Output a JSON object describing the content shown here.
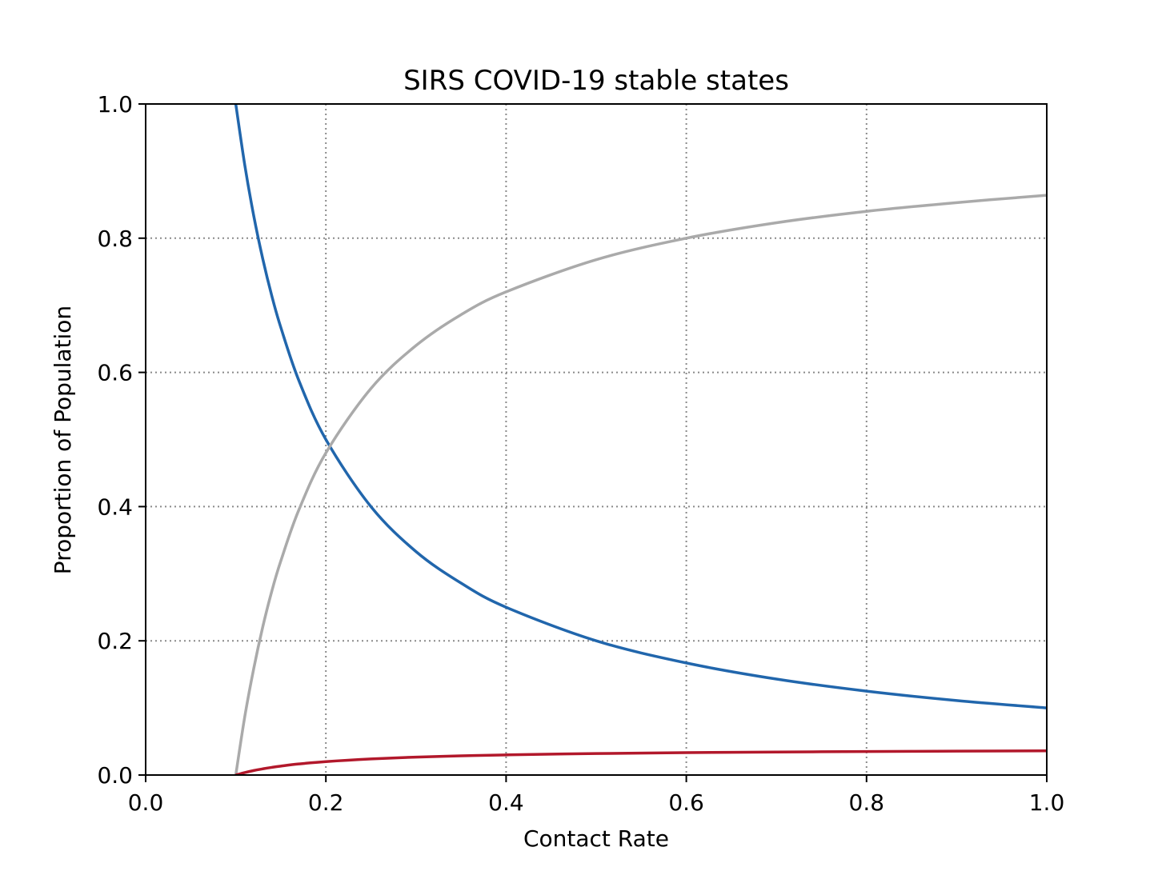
{
  "chart_data": {
    "type": "line",
    "title": "SIRS COVID-19 stable states",
    "xlabel": "Contact Rate",
    "ylabel": "Proportion of Population",
    "xlim": [
      0.0,
      1.0
    ],
    "ylim": [
      0.0,
      1.0
    ],
    "xticks": [
      "0.0",
      "0.2",
      "0.4",
      "0.6",
      "0.8",
      "1.0"
    ],
    "yticks": [
      "0.0",
      "0.2",
      "0.4",
      "0.6",
      "0.8",
      "1.0"
    ],
    "grid": true,
    "grid_style": "dotted",
    "legend": "none",
    "series": [
      {
        "color": "#2166ac",
        "x": [
          0.1,
          0.11,
          0.12,
          0.13,
          0.14,
          0.15,
          0.17,
          0.2,
          0.25,
          0.3,
          0.35,
          0.4,
          0.5,
          0.6,
          0.7,
          0.8,
          0.9,
          1.0
        ],
        "y": [
          1.0,
          0.909,
          0.833,
          0.769,
          0.714,
          0.667,
          0.588,
          0.5,
          0.4,
          0.333,
          0.286,
          0.25,
          0.2,
          0.167,
          0.143,
          0.125,
          0.111,
          0.1
        ]
      },
      {
        "color": "#aaaaaa",
        "x": [
          0.1,
          0.11,
          0.12,
          0.13,
          0.14,
          0.15,
          0.17,
          0.2,
          0.25,
          0.3,
          0.35,
          0.4,
          0.5,
          0.6,
          0.7,
          0.8,
          0.9,
          1.0
        ],
        "y": [
          0.0,
          0.087,
          0.159,
          0.221,
          0.274,
          0.319,
          0.395,
          0.48,
          0.576,
          0.64,
          0.686,
          0.72,
          0.768,
          0.8,
          0.823,
          0.84,
          0.853,
          0.864
        ]
      },
      {
        "color": "#b2182b",
        "x": [
          0.1,
          0.11,
          0.12,
          0.13,
          0.14,
          0.15,
          0.17,
          0.2,
          0.25,
          0.3,
          0.35,
          0.4,
          0.5,
          0.6,
          0.7,
          0.8,
          0.9,
          1.0
        ],
        "y": [
          0.0,
          0.0036,
          0.0067,
          0.0092,
          0.0114,
          0.0133,
          0.0165,
          0.02,
          0.024,
          0.0267,
          0.0286,
          0.03,
          0.032,
          0.0333,
          0.0343,
          0.035,
          0.0356,
          0.036
        ]
      }
    ]
  }
}
